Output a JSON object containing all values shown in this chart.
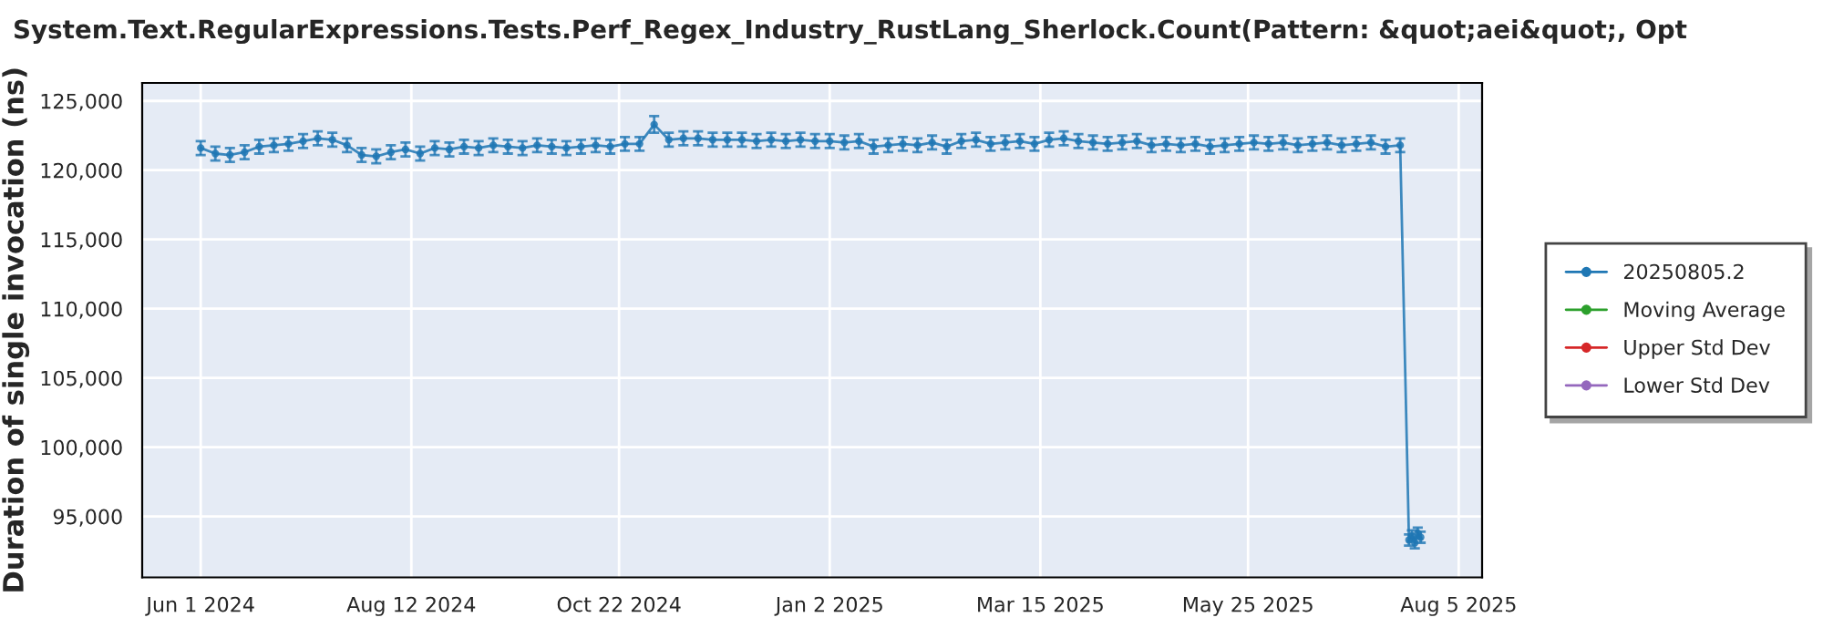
{
  "chart_data": {
    "type": "line",
    "title": "System.Text.RegularExpressions.Tests.Perf_Regex_Industry_RustLang_Sherlock.Count(Pattern: &quot;aei&quot;, Opt",
    "ylabel": "Duration of single invocation (ns)",
    "x": [
      "2024-06-01",
      "2024-06-06",
      "2024-06-11",
      "2024-06-16",
      "2024-06-21",
      "2024-06-26",
      "2024-07-01",
      "2024-07-06",
      "2024-07-11",
      "2024-07-16",
      "2024-07-21",
      "2024-07-26",
      "2024-07-31",
      "2024-08-05",
      "2024-08-10",
      "2024-08-15",
      "2024-08-20",
      "2024-08-25",
      "2024-08-30",
      "2024-09-04",
      "2024-09-09",
      "2024-09-14",
      "2024-09-19",
      "2024-09-24",
      "2024-09-29",
      "2024-10-04",
      "2024-10-09",
      "2024-10-14",
      "2024-10-19",
      "2024-10-24",
      "2024-10-29",
      "2024-11-03",
      "2024-11-08",
      "2024-11-13",
      "2024-11-18",
      "2024-11-23",
      "2024-11-28",
      "2024-12-03",
      "2024-12-08",
      "2024-12-13",
      "2024-12-18",
      "2024-12-23",
      "2024-12-28",
      "2025-01-02",
      "2025-01-07",
      "2025-01-12",
      "2025-01-17",
      "2025-01-22",
      "2025-01-27",
      "2025-02-01",
      "2025-02-06",
      "2025-02-11",
      "2025-02-16",
      "2025-02-21",
      "2025-02-26",
      "2025-03-03",
      "2025-03-08",
      "2025-03-13",
      "2025-03-18",
      "2025-03-23",
      "2025-03-28",
      "2025-04-02",
      "2025-04-07",
      "2025-04-12",
      "2025-04-17",
      "2025-04-22",
      "2025-04-27",
      "2025-05-02",
      "2025-05-07",
      "2025-05-12",
      "2025-05-17",
      "2025-05-22",
      "2025-05-27",
      "2025-06-01",
      "2025-06-06",
      "2025-06-11",
      "2025-06-16",
      "2025-06-21",
      "2025-06-26",
      "2025-07-01",
      "2025-07-06",
      "2025-07-11",
      "2025-07-16",
      "2025-07-19",
      "2025-07-20",
      "2025-07-21",
      "2025-07-22",
      "2025-07-23"
    ],
    "series": [
      {
        "name": "20250805.2",
        "color": "#1f77b4",
        "values": [
          121600,
          121200,
          121100,
          121300,
          121700,
          121800,
          121900,
          122100,
          122300,
          122200,
          121800,
          121100,
          121000,
          121300,
          121500,
          121200,
          121600,
          121500,
          121700,
          121600,
          121800,
          121700,
          121600,
          121800,
          121700,
          121600,
          121700,
          121800,
          121700,
          121900,
          121900,
          123300,
          122200,
          122300,
          122300,
          122200,
          122200,
          122200,
          122100,
          122200,
          122100,
          122200,
          122100,
          122100,
          122000,
          122100,
          121700,
          121800,
          121900,
          121800,
          122000,
          121700,
          122100,
          122200,
          121900,
          122000,
          122100,
          121900,
          122200,
          122300,
          122100,
          122000,
          121900,
          122000,
          122100,
          121800,
          121900,
          121800,
          121900,
          121700,
          121800,
          121900,
          122000,
          121900,
          122000,
          121800,
          121900,
          122000,
          121800,
          121900,
          122000,
          121700,
          121800,
          93300,
          93600,
          93100,
          93800,
          93500
        ],
        "errors": [
          500,
          500,
          500,
          500,
          500,
          500,
          500,
          500,
          500,
          500,
          500,
          500,
          500,
          500,
          500,
          500,
          500,
          500,
          500,
          500,
          500,
          500,
          500,
          500,
          500,
          500,
          500,
          500,
          500,
          500,
          500,
          600,
          500,
          500,
          500,
          500,
          500,
          500,
          500,
          500,
          500,
          500,
          500,
          500,
          500,
          500,
          500,
          500,
          500,
          500,
          500,
          500,
          500,
          500,
          500,
          500,
          500,
          500,
          500,
          500,
          500,
          500,
          500,
          500,
          500,
          500,
          500,
          500,
          500,
          500,
          500,
          500,
          500,
          500,
          500,
          500,
          500,
          500,
          500,
          500,
          500,
          500,
          500,
          400,
          400,
          400,
          400,
          400
        ]
      },
      {
        "name": "Moving Average",
        "color": "#2ca02c",
        "values": [
          null,
          null,
          null,
          null,
          null,
          null,
          null,
          null,
          null,
          null,
          null,
          null,
          null,
          null,
          null,
          null,
          null,
          null,
          null,
          null,
          null,
          null,
          null,
          null,
          null,
          null,
          null,
          null,
          null,
          null,
          null,
          null,
          null,
          null,
          null,
          null,
          null,
          null,
          null,
          null,
          null,
          null,
          null,
          null,
          null,
          null,
          null,
          null,
          null,
          null,
          null,
          null,
          null,
          null,
          null,
          null,
          null,
          null,
          null,
          null,
          null,
          null,
          null,
          null,
          null,
          null,
          null,
          null,
          null,
          null,
          null,
          null,
          null,
          null,
          null,
          null,
          null,
          null,
          null,
          null,
          null,
          null,
          null,
          null,
          null,
          null,
          null,
          null
        ]
      },
      {
        "name": "Upper Std Dev",
        "color": "#d62728",
        "values": [
          null,
          null,
          null,
          null,
          null,
          null,
          null,
          null,
          null,
          null,
          null,
          null,
          null,
          null,
          null,
          null,
          null,
          null,
          null,
          null,
          null,
          null,
          null,
          null,
          null,
          null,
          null,
          null,
          null,
          null,
          null,
          null,
          null,
          null,
          null,
          null,
          null,
          null,
          null,
          null,
          null,
          null,
          null,
          null,
          null,
          null,
          null,
          null,
          null,
          null,
          null,
          null,
          null,
          null,
          null,
          null,
          null,
          null,
          null,
          null,
          null,
          null,
          null,
          null,
          null,
          null,
          null,
          null,
          null,
          null,
          null,
          null,
          null,
          null,
          null,
          null,
          null,
          null,
          null,
          null,
          null,
          null,
          null,
          null,
          null,
          null,
          null,
          null
        ]
      },
      {
        "name": "Lower Std Dev",
        "color": "#9467bd",
        "values": [
          null,
          null,
          null,
          null,
          null,
          null,
          null,
          null,
          null,
          null,
          null,
          null,
          null,
          null,
          null,
          null,
          null,
          null,
          null,
          null,
          null,
          null,
          null,
          null,
          null,
          null,
          null,
          null,
          null,
          null,
          null,
          null,
          null,
          null,
          null,
          null,
          null,
          null,
          null,
          null,
          null,
          null,
          null,
          null,
          null,
          null,
          null,
          null,
          null,
          null,
          null,
          null,
          null,
          null,
          null,
          null,
          null,
          null,
          null,
          null,
          null,
          null,
          null,
          null,
          null,
          null,
          null,
          null,
          null,
          null,
          null,
          null,
          null,
          null,
          null,
          null,
          null,
          null,
          null,
          null,
          null,
          null,
          null,
          null,
          null,
          null,
          null,
          null
        ]
      }
    ],
    "xlim": [
      "2024-05-12",
      "2025-08-13"
    ],
    "xticks": [
      {
        "value": "2024-06-01",
        "label": "Jun 1 2024"
      },
      {
        "value": "2024-08-12",
        "label": "Aug 12 2024"
      },
      {
        "value": "2024-10-22",
        "label": "Oct 22 2024"
      },
      {
        "value": "2025-01-02",
        "label": "Jan 2 2025"
      },
      {
        "value": "2025-03-15",
        "label": "Mar 15 2025"
      },
      {
        "value": "2025-05-25",
        "label": "May 25 2025"
      },
      {
        "value": "2025-08-05",
        "label": "Aug 5 2025"
      }
    ],
    "ylim": [
      90600,
      126300
    ],
    "yticks": [
      {
        "value": 95000,
        "label": "95,000"
      },
      {
        "value": 100000,
        "label": "100,000"
      },
      {
        "value": 105000,
        "label": "105,000"
      },
      {
        "value": 110000,
        "label": "110,000"
      },
      {
        "value": 115000,
        "label": "115,000"
      },
      {
        "value": 120000,
        "label": "120,000"
      },
      {
        "value": 125000,
        "label": "125,000"
      }
    ],
    "grid": true,
    "legend": "right",
    "marker": "circle",
    "line_style": "solid"
  }
}
